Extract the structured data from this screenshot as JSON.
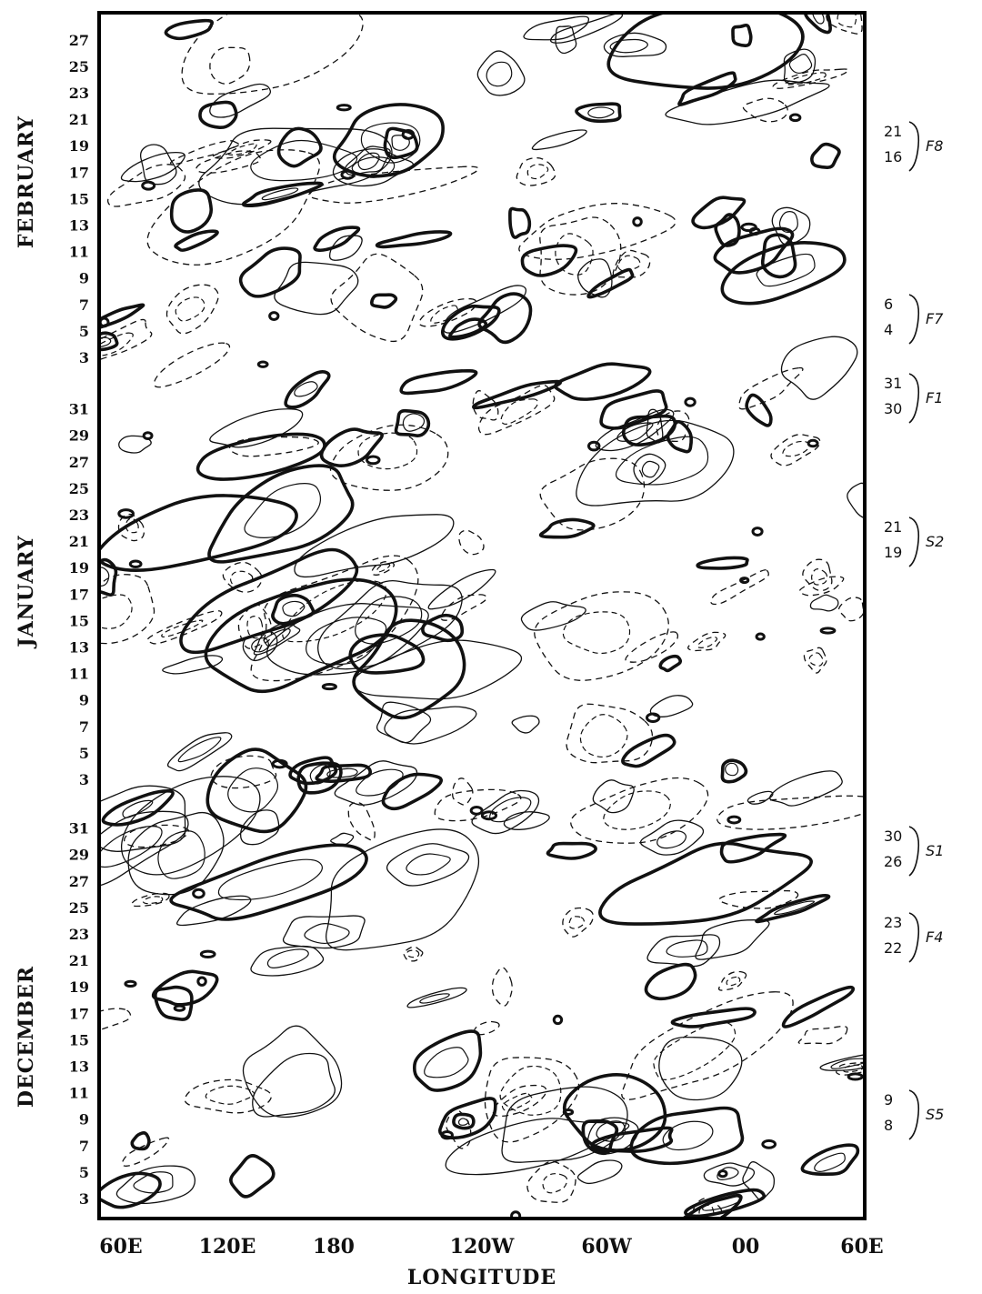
{
  "chart_data": {
    "type": "contour",
    "xlabel": "LONGITUDE",
    "x_ticks": [
      "60E",
      "120E",
      "180",
      "120W",
      "60W",
      "00",
      "60E"
    ],
    "x_values_deg_east": [
      60,
      120,
      180,
      240,
      300,
      360,
      420
    ],
    "xlim": [
      60,
      420
    ],
    "y_groups": [
      {
        "month": "DECEMBER",
        "ticks": [
          "3",
          "5",
          "7",
          "9",
          "11",
          "13",
          "15",
          "17",
          "19",
          "21",
          "23",
          "25",
          "27",
          "29",
          "31"
        ]
      },
      {
        "month": "JANUARY",
        "ticks": [
          "3",
          "5",
          "7",
          "9",
          "11",
          "13",
          "15",
          "17",
          "19",
          "21",
          "23",
          "25",
          "27",
          "29",
          "31"
        ]
      },
      {
        "month": "FEBRUARY",
        "ticks": [
          "3",
          "5",
          "7",
          "9",
          "11",
          "13",
          "15",
          "17",
          "19",
          "21",
          "23",
          "25",
          "27"
        ]
      }
    ],
    "time_axis": "days from 1 December (bottom) to 27 February (top)",
    "contour_styles": [
      "thick solid",
      "thin solid",
      "dashed"
    ],
    "annotations": [
      {
        "from": "21",
        "to": "16",
        "tag": "F8"
      },
      {
        "from": "6",
        "to": "4",
        "tag": "F7"
      },
      {
        "from": "31",
        "to": "30",
        "tag": "F1"
      },
      {
        "from": "21",
        "to": "19",
        "tag": "S2"
      },
      {
        "from": "30",
        "to": "26",
        "tag": "S1"
      },
      {
        "from": "23",
        "to": "22",
        "tag": "F4"
      },
      {
        "from": "9",
        "to": "8",
        "tag": "S5"
      }
    ]
  }
}
